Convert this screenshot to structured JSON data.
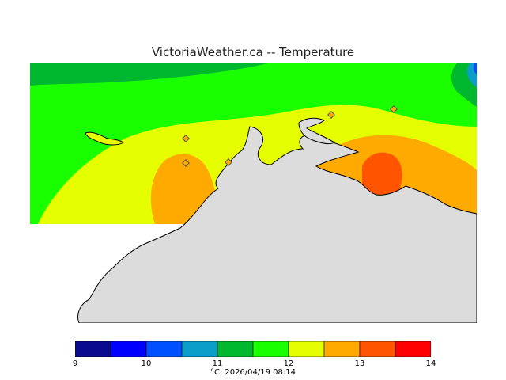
{
  "title": "VictoriaWeather.ca -- Temperature",
  "legend": {
    "colors": [
      "#0a0a8f",
      "#0000ff",
      "#0050ff",
      "#0a9ec9",
      "#00b830",
      "#1aff00",
      "#e6ff00",
      "#ffaa00",
      "#ff5500",
      "#ff0000"
    ],
    "ticks": [
      "9",
      "10",
      "11",
      "12",
      "13",
      "14"
    ],
    "unit_label": "°C",
    "timestamp": "2026/04/19 08:14"
  },
  "map_colors": {
    "land": "#dcdcdc",
    "nodata": "#ffffff",
    "band_11_5_12": "#1aff00",
    "band_11_11_5": "#00b830",
    "band_12_12_5": "#e6ff00",
    "band_12_5_13": "#ffaa00",
    "band_13_13_5": "#ff5500",
    "band_10_5_11": "#0a9ec9"
  },
  "stations": 5
}
